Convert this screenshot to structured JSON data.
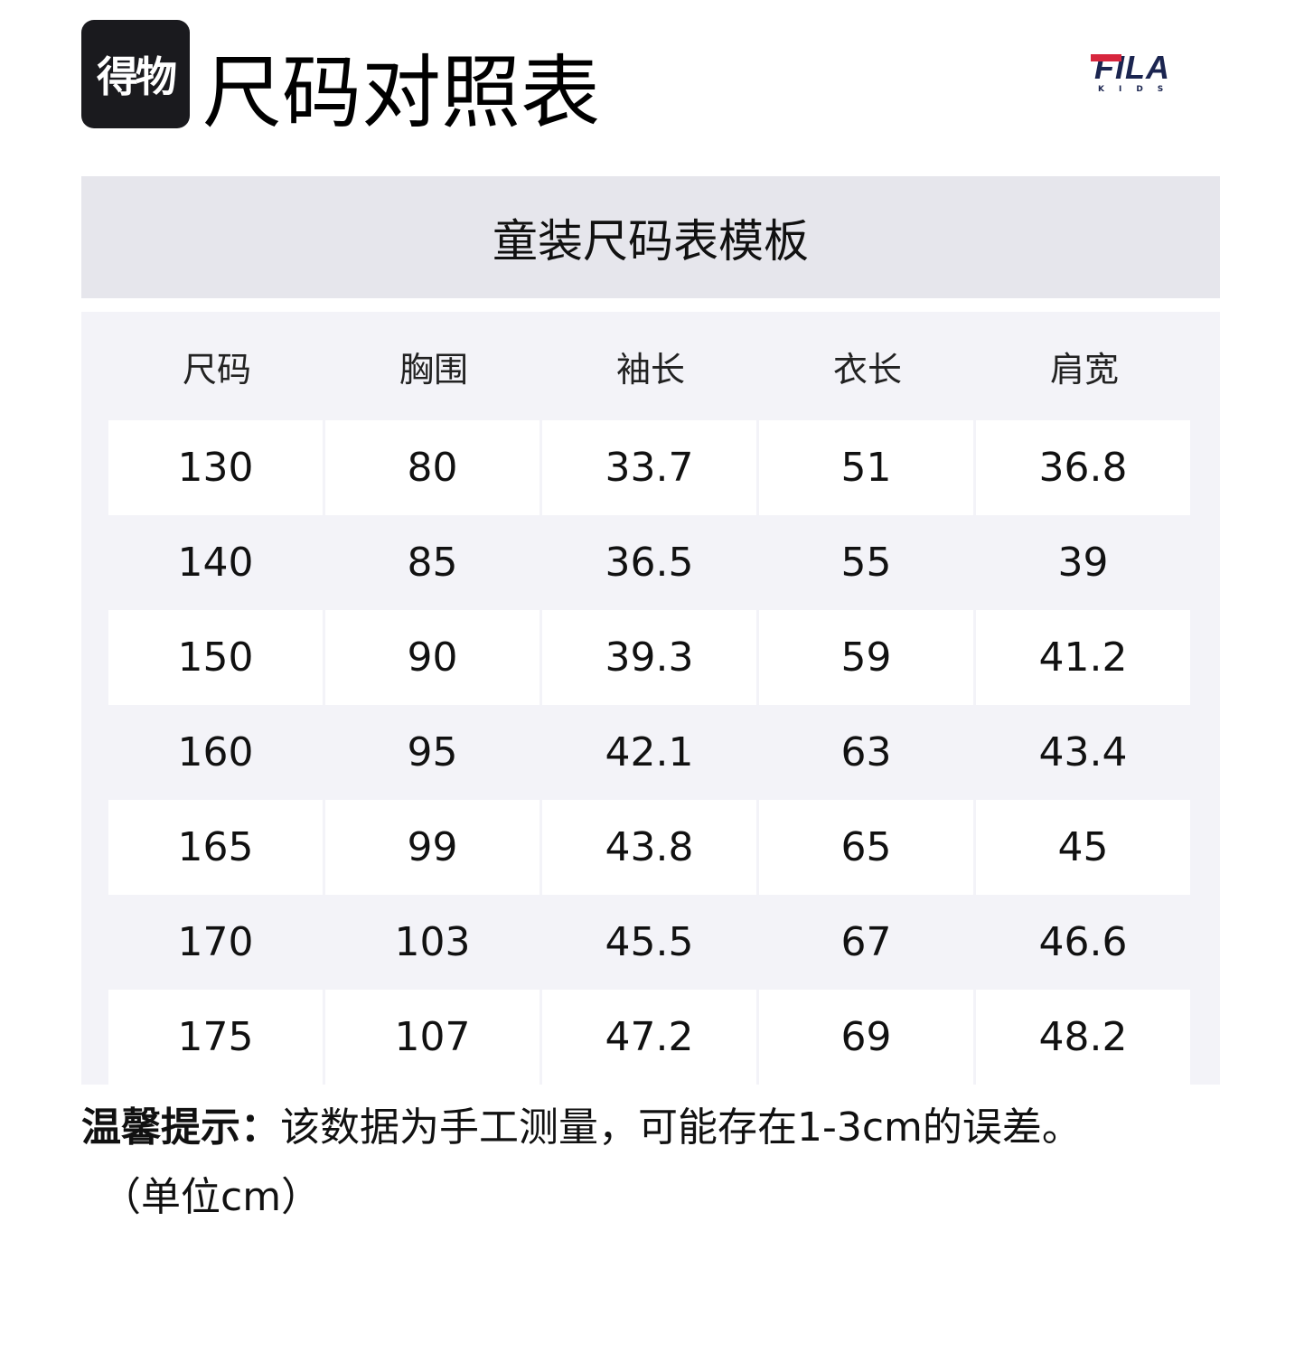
{
  "logo": {
    "text": "得物"
  },
  "title": "尺码对照表",
  "brand": {
    "name": "FILA",
    "sub": "KIDS",
    "colors": {
      "navy": "#1b2550",
      "red": "#d7263d"
    }
  },
  "subtitle": "童装尺码表模板",
  "table": {
    "headers": [
      "尺码",
      "胸围",
      "袖长",
      "衣长",
      "肩宽"
    ],
    "rows": [
      [
        "130",
        "80",
        "33.7",
        "51",
        "36.8"
      ],
      [
        "140",
        "85",
        "36.5",
        "55",
        "39"
      ],
      [
        "150",
        "90",
        "39.3",
        "59",
        "41.2"
      ],
      [
        "160",
        "95",
        "42.1",
        "63",
        "43.4"
      ],
      [
        "165",
        "99",
        "43.8",
        "65",
        "45"
      ],
      [
        "170",
        "103",
        "45.5",
        "67",
        "46.6"
      ],
      [
        "175",
        "107",
        "47.2",
        "69",
        "48.2"
      ]
    ]
  },
  "note": {
    "label": "温馨提示：",
    "text": "该数据为手工测量，可能存在1-3cm的误差。",
    "unit": "（单位cm）"
  }
}
